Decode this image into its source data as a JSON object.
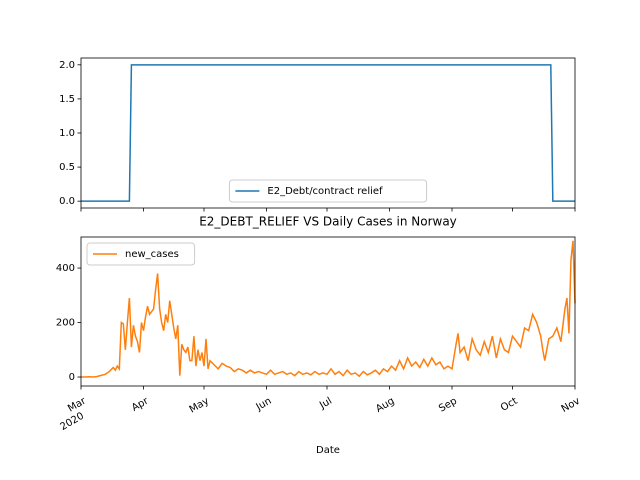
{
  "chart_data": [
    {
      "type": "line",
      "yticks": [
        {
          "value": 0,
          "label": "0.0"
        },
        0.5,
        {
          "value": 1,
          "label": "1.0"
        },
        1.5,
        {
          "value": 2,
          "label": "2.0"
        }
      ],
      "ylim": [
        -0.1,
        2.1
      ],
      "legend": "lower center",
      "series": [
        {
          "name": "E2_Debt/contract relief",
          "color": "#1f77b4",
          "x": [
            0,
            24,
            25,
            233,
            234,
            245
          ],
          "values": [
            0,
            0,
            2,
            2,
            0,
            0
          ]
        }
      ]
    },
    {
      "type": "line",
      "title": "E2_DEBT_RELIEF VS Daily Cases in Norway",
      "x_label": "Date",
      "x_year_label": "2020",
      "xlim": [
        0,
        245
      ],
      "xticks": [
        {
          "value": 0,
          "label": "Mar"
        },
        {
          "value": 31,
          "label": "Apr"
        },
        {
          "value": 61,
          "label": "May"
        },
        {
          "value": 92,
          "label": "Jun"
        },
        {
          "value": 122,
          "label": "Jul"
        },
        {
          "value": 153,
          "label": "Aug"
        },
        {
          "value": 184,
          "label": "Sep"
        },
        {
          "value": 214,
          "label": "Oct"
        },
        {
          "value": 245,
          "label": "Nov"
        }
      ],
      "ylim": [
        -33,
        514
      ],
      "yticks": [
        0,
        200,
        400
      ],
      "legend": "upper left",
      "series": [
        {
          "name": "new_cases",
          "color": "#ff7f0e",
          "x": [
            0,
            2,
            4,
            6,
            8,
            10,
            12,
            14,
            16,
            17,
            18,
            19,
            20,
            21,
            22,
            23,
            24,
            25,
            26,
            27,
            28,
            29,
            30,
            31,
            32,
            33,
            34,
            35,
            36,
            37,
            38,
            39,
            40,
            41,
            42,
            43,
            44,
            45,
            46,
            47,
            48,
            49,
            50,
            51,
            52,
            53,
            54,
            55,
            56,
            57,
            58,
            59,
            60,
            61,
            62,
            63,
            64,
            66,
            68,
            70,
            72,
            74,
            76,
            78,
            80,
            82,
            84,
            86,
            88,
            90,
            92,
            94,
            96,
            98,
            100,
            102,
            104,
            106,
            108,
            110,
            112,
            114,
            116,
            118,
            120,
            122,
            124,
            126,
            128,
            130,
            132,
            134,
            136,
            138,
            140,
            142,
            144,
            146,
            148,
            150,
            152,
            154,
            156,
            158,
            160,
            162,
            164,
            166,
            168,
            170,
            172,
            174,
            176,
            178,
            180,
            182,
            184,
            186,
            187,
            188,
            190,
            192,
            194,
            196,
            198,
            200,
            202,
            204,
            206,
            208,
            210,
            212,
            214,
            216,
            218,
            220,
            222,
            224,
            226,
            228,
            229,
            230,
            232,
            234,
            236,
            238,
            240,
            241,
            242,
            243,
            244,
            245
          ],
          "values": [
            0,
            0,
            1,
            0,
            2,
            6,
            10,
            20,
            35,
            25,
            40,
            30,
            200,
            195,
            100,
            200,
            290,
            110,
            190,
            150,
            130,
            90,
            200,
            170,
            220,
            260,
            230,
            240,
            250,
            320,
            380,
            250,
            200,
            170,
            230,
            200,
            280,
            230,
            180,
            140,
            190,
            5,
            120,
            100,
            90,
            110,
            60,
            60,
            150,
            40,
            100,
            60,
            90,
            40,
            140,
            30,
            60,
            45,
            30,
            50,
            40,
            35,
            20,
            30,
            25,
            15,
            25,
            15,
            20,
            15,
            10,
            25,
            10,
            15,
            20,
            10,
            15,
            5,
            20,
            10,
            15,
            8,
            20,
            10,
            15,
            10,
            30,
            10,
            20,
            5,
            25,
            10,
            15,
            3,
            20,
            8,
            15,
            25,
            10,
            30,
            20,
            40,
            25,
            60,
            30,
            70,
            40,
            55,
            35,
            65,
            40,
            70,
            45,
            55,
            30,
            40,
            30,
            120,
            160,
            90,
            110,
            60,
            140,
            100,
            80,
            130,
            90,
            150,
            70,
            140,
            100,
            90,
            150,
            130,
            110,
            180,
            170,
            230,
            200,
            150,
            100,
            60,
            140,
            150,
            180,
            130,
            250,
            290,
            160,
            430,
            500,
            270
          ]
        }
      ]
    }
  ]
}
